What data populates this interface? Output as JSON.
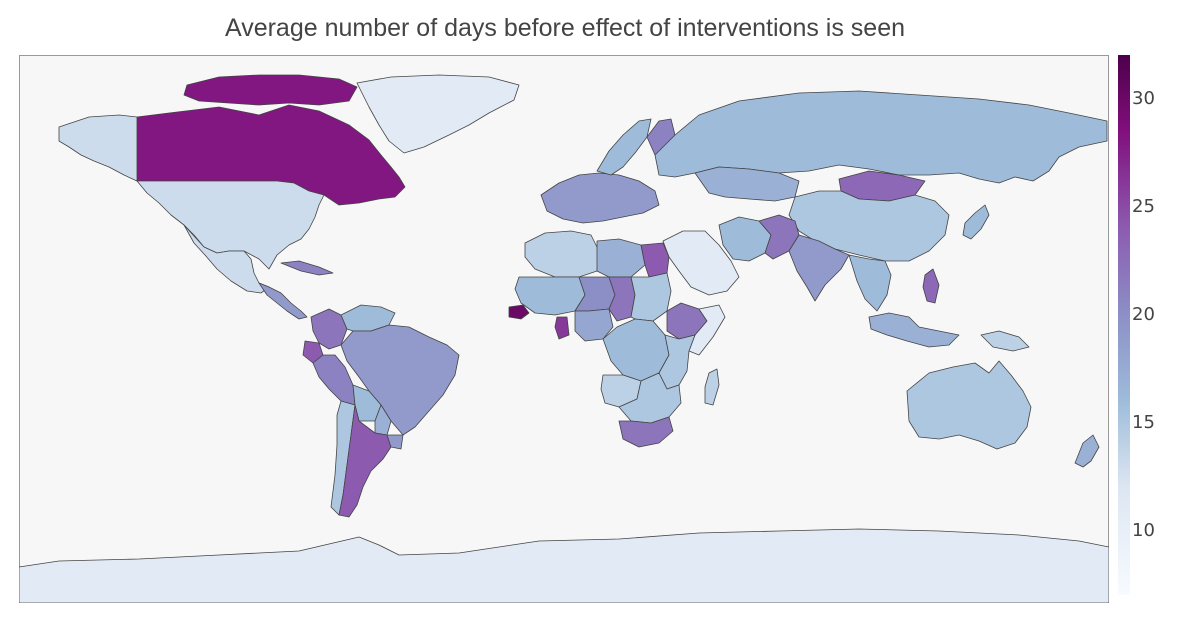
{
  "title": "Average number of days before effect of interventions is seen",
  "colors": {
    "ocean": "#f7f7f7",
    "border": "#444444",
    "frame": "#999999",
    "scale": [
      "#f7fbff",
      "#dce6f2",
      "#9ebcda",
      "#8c8fc6",
      "#8c5bb0",
      "#810f7c",
      "#4d004b"
    ]
  },
  "colorbar": {
    "min": 7,
    "max": 32,
    "ticks": [
      "10",
      "15",
      "20",
      "25",
      "30"
    ],
    "tick_values": [
      10,
      15,
      20,
      25,
      30
    ]
  },
  "regions": [
    {
      "name": "Greenland",
      "value": 11
    },
    {
      "name": "Canada",
      "value": 28
    },
    {
      "name": "Alaska",
      "value": 13
    },
    {
      "name": "United States",
      "value": 13
    },
    {
      "name": "Mexico",
      "value": 13
    },
    {
      "name": "Central America",
      "value": 19
    },
    {
      "name": "Cuba",
      "value": 21
    },
    {
      "name": "Colombia",
      "value": 22
    },
    {
      "name": "Venezuela",
      "value": 16
    },
    {
      "name": "Ecuador",
      "value": 24
    },
    {
      "name": "Peru",
      "value": 21
    },
    {
      "name": "Brazil",
      "value": 19
    },
    {
      "name": "Bolivia",
      "value": 16
    },
    {
      "name": "Paraguay",
      "value": 17
    },
    {
      "name": "Chile",
      "value": 15
    },
    {
      "name": "Argentina",
      "value": 24
    },
    {
      "name": "Uruguay",
      "value": 19
    },
    {
      "name": "Western Europe",
      "value": 19
    },
    {
      "name": "Scandinavia",
      "value": 16
    },
    {
      "name": "Finland",
      "value": 21
    },
    {
      "name": "Russia",
      "value": 16
    },
    {
      "name": "Kazakhstan",
      "value": 17
    },
    {
      "name": "Mongolia",
      "value": 23
    },
    {
      "name": "China",
      "value": 15
    },
    {
      "name": "Middle East",
      "value": 11
    },
    {
      "name": "Iran",
      "value": 16
    },
    {
      "name": "Pakistan",
      "value": 22
    },
    {
      "name": "India",
      "value": 19
    },
    {
      "name": "Southeast Asia",
      "value": 16
    },
    {
      "name": "Philippines",
      "value": 23
    },
    {
      "name": "Japan",
      "value": 16
    },
    {
      "name": "Indonesia",
      "value": 17
    },
    {
      "name": "Papua New Guinea",
      "value": 14
    },
    {
      "name": "Australia",
      "value": 15
    },
    {
      "name": "New Zealand",
      "value": 17
    },
    {
      "name": "Morocco / Algeria",
      "value": 14
    },
    {
      "name": "Libya",
      "value": 17
    },
    {
      "name": "Egypt",
      "value": 24
    },
    {
      "name": "Sahel West",
      "value": 16
    },
    {
      "name": "Niger",
      "value": 20
    },
    {
      "name": "Chad",
      "value": 22
    },
    {
      "name": "Sudan",
      "value": 15
    },
    {
      "name": "Ethiopia",
      "value": 22
    },
    {
      "name": "Somalia",
      "value": 11
    },
    {
      "name": "Senegal",
      "value": 30
    },
    {
      "name": "Ghana",
      "value": 26
    },
    {
      "name": "Nigeria",
      "value": 18
    },
    {
      "name": "Congo Basin",
      "value": 16
    },
    {
      "name": "East Africa",
      "value": 15
    },
    {
      "name": "Angola",
      "value": 14
    },
    {
      "name": "Southern Africa Central",
      "value": 15
    },
    {
      "name": "Madagascar",
      "value": 14
    },
    {
      "name": "South Africa",
      "value": 22
    },
    {
      "name": "Antarctica",
      "value": 11
    }
  ]
}
